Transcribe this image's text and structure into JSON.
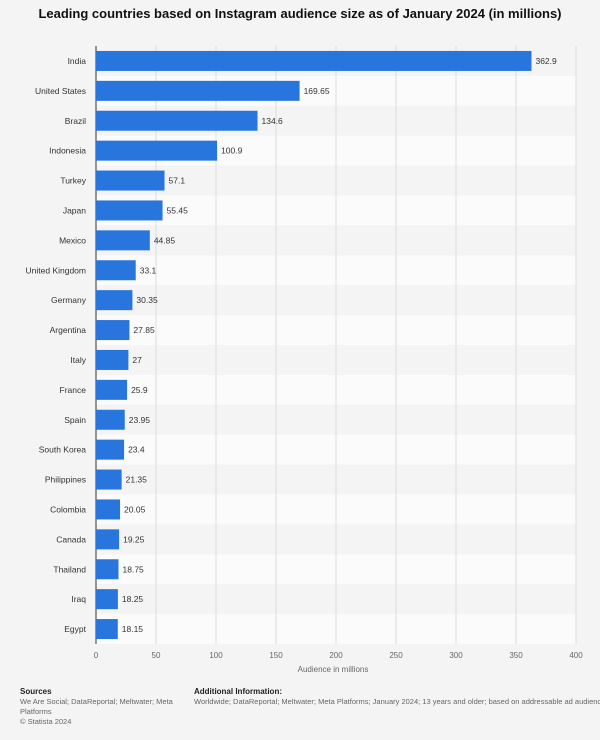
{
  "chart_data": {
    "type": "bar",
    "orientation": "horizontal",
    "title": "Leading countries based on Instagram audience size as of January 2024 (in millions)",
    "xlabel": "Audience in millions",
    "ylabel": "",
    "xlim": [
      0,
      400
    ],
    "xticks": [
      0,
      50,
      100,
      150,
      200,
      250,
      300,
      350,
      400
    ],
    "grid": true,
    "bar_color": "#2876dd",
    "categories": [
      "India",
      "United States",
      "Brazil",
      "Indonesia",
      "Turkey",
      "Japan",
      "Mexico",
      "United Kingdom",
      "Germany",
      "Argentina",
      "Italy",
      "France",
      "Spain",
      "South Korea",
      "Philippines",
      "Colombia",
      "Canada",
      "Thailand",
      "Iraq",
      "Egypt"
    ],
    "values": [
      362.9,
      169.65,
      134.6,
      100.9,
      57.1,
      55.45,
      44.85,
      33.1,
      30.35,
      27.85,
      27,
      25.9,
      23.95,
      23.4,
      21.35,
      20.05,
      19.25,
      18.75,
      18.25,
      18.15
    ],
    "value_labels": [
      "362.9",
      "169.65",
      "134.6",
      "100.9",
      "57.1",
      "55.45",
      "44.85",
      "33.1",
      "30.35",
      "27.85",
      "27",
      "25.9",
      "23.95",
      "23.4",
      "21.35",
      "20.05",
      "19.25",
      "18.75",
      "18.25",
      "18.15"
    ]
  },
  "footer": {
    "sources_heading": "Sources",
    "sources_text": "We Are Social; DataReportal; Meltwater; Meta Platforms",
    "copyright": "© Statista 2024",
    "additional_heading": "Additional Information:",
    "additional_text": "Worldwide; DataReportal; Meltwater; Meta Platforms; January 2024; 13 years and older; based on addressable ad audiences"
  }
}
